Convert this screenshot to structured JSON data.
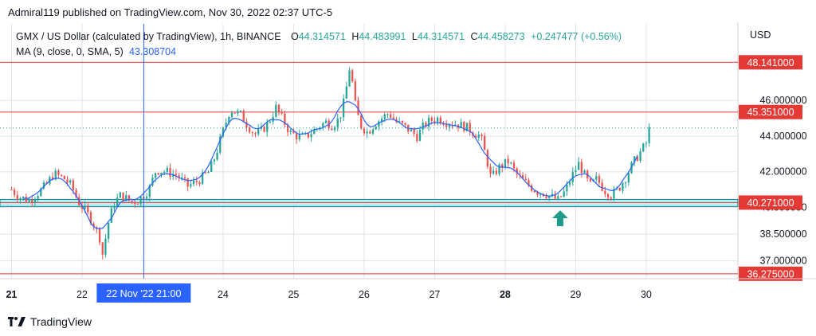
{
  "publisher_line": "Admiral119 published on TradingView.com, Nov 30, 2022 02:37 UTC-5",
  "footer_brand": "TradingView",
  "colors": {
    "up": "#26a69a",
    "down": "#ef5350",
    "ma": "#2962ff",
    "hline": "#e53935",
    "zone_fill": "#b2ebf2",
    "zone_border": "#00838f",
    "arrow": "#1e9e8a",
    "crosshair": "#2962ff",
    "grid": "#e0e3eb"
  },
  "chart_data": {
    "type": "candlestick",
    "symbol_line": {
      "title": "GMX / US Dollar (calculated by TradingView), 1h, BINANCE",
      "o_label": "O",
      "o": "44.314571",
      "h_label": "H",
      "h": "44.483991",
      "l_label": "L",
      "l": "44.314571",
      "c_label": "C",
      "c": "44.458273",
      "change": "+0.247477 (+0.56%)"
    },
    "ma_line": {
      "label": "MA (9, close, 0, SMA, 5)",
      "value": "43.308704"
    },
    "currency": "USD",
    "y_ticks": [
      {
        "value": 46.0,
        "label": "46.000000"
      },
      {
        "value": 44.0,
        "label": "44.000000"
      },
      {
        "value": 42.0,
        "label": "42.000000"
      },
      {
        "value": 40.0,
        "label": "40.000000"
      },
      {
        "value": 38.5,
        "label": "38.500000"
      },
      {
        "value": 37.0,
        "label": "37.000000"
      }
    ],
    "x_ticks": [
      {
        "day": 21,
        "label": "21",
        "bold": true
      },
      {
        "day": 22,
        "label": "22",
        "bold": false
      },
      {
        "day": 24,
        "label": "24",
        "bold": false
      },
      {
        "day": 25,
        "label": "25",
        "bold": false
      },
      {
        "day": 26,
        "label": "26",
        "bold": false
      },
      {
        "day": 27,
        "label": "27",
        "bold": false
      },
      {
        "day": 28,
        "label": "28",
        "bold": true
      },
      {
        "day": 29,
        "label": "29",
        "bold": false
      },
      {
        "day": 30,
        "label": "30",
        "bold": false
      }
    ],
    "x_range_days": [
      20.95,
      31.3
    ],
    "y_range": [
      36.0,
      48.6
    ],
    "levels": [
      {
        "value": 48.141,
        "label": "48.141000"
      },
      {
        "value": 45.351,
        "label": "45.351000"
      },
      {
        "value": 40.271,
        "label": "40.271000"
      },
      {
        "value": 36.275,
        "label": "36.275000"
      }
    ],
    "current_price": 44.458,
    "support_zone": [
      40.05,
      40.45
    ],
    "crosshair": {
      "day": 22.875,
      "label": "22 Nov '22   21:00"
    },
    "arrow_up_at": {
      "day": 28.78,
      "value": 39.75
    },
    "price_path": [
      [
        21.0,
        41.0
      ],
      [
        21.1,
        40.6
      ],
      [
        21.25,
        40.4
      ],
      [
        21.4,
        40.9
      ],
      [
        21.5,
        41.3
      ],
      [
        21.6,
        41.9
      ],
      [
        21.75,
        41.6
      ],
      [
        21.85,
        41.2
      ],
      [
        21.95,
        40.3
      ],
      [
        22.05,
        39.8
      ],
      [
        22.15,
        39.2
      ],
      [
        22.25,
        38.3
      ],
      [
        22.3,
        37.2
      ],
      [
        22.35,
        38.8
      ],
      [
        22.45,
        40.2
      ],
      [
        22.55,
        40.7
      ],
      [
        22.7,
        40.3
      ],
      [
        22.8,
        40.4
      ],
      [
        22.95,
        41.0
      ],
      [
        23.05,
        42.1
      ],
      [
        23.2,
        42.0
      ],
      [
        23.35,
        41.8
      ],
      [
        23.5,
        41.2
      ],
      [
        23.65,
        41.5
      ],
      [
        23.8,
        42.0
      ],
      [
        23.9,
        43.0
      ],
      [
        24.0,
        44.3
      ],
      [
        24.1,
        45.5
      ],
      [
        24.25,
        45.2
      ],
      [
        24.35,
        44.6
      ],
      [
        24.45,
        44.1
      ],
      [
        24.55,
        44.3
      ],
      [
        24.65,
        44.8
      ],
      [
        24.75,
        45.6
      ],
      [
        24.85,
        44.9
      ],
      [
        24.95,
        44.2
      ],
      [
        25.05,
        44.0
      ],
      [
        25.15,
        43.9
      ],
      [
        25.25,
        44.2
      ],
      [
        25.35,
        44.5
      ],
      [
        25.45,
        44.8
      ],
      [
        25.55,
        44.6
      ],
      [
        25.65,
        45.0
      ],
      [
        25.72,
        46.0
      ],
      [
        25.8,
        48.0
      ],
      [
        25.88,
        45.6
      ],
      [
        25.95,
        44.6
      ],
      [
        26.05,
        44.2
      ],
      [
        26.15,
        44.7
      ],
      [
        26.25,
        45.0
      ],
      [
        26.35,
        45.3
      ],
      [
        26.45,
        44.8
      ],
      [
        26.55,
        44.6
      ],
      [
        26.65,
        44.3
      ],
      [
        26.75,
        44.0
      ],
      [
        26.85,
        44.6
      ],
      [
        26.95,
        44.9
      ],
      [
        27.05,
        45.0
      ],
      [
        27.15,
        44.8
      ],
      [
        27.3,
        44.7
      ],
      [
        27.45,
        44.5
      ],
      [
        27.55,
        44.2
      ],
      [
        27.65,
        44.0
      ],
      [
        27.75,
        42.5
      ],
      [
        27.8,
        41.6
      ],
      [
        27.9,
        42.2
      ],
      [
        28.05,
        42.6
      ],
      [
        28.15,
        41.9
      ],
      [
        28.25,
        41.5
      ],
      [
        28.35,
        41.2
      ],
      [
        28.45,
        40.9
      ],
      [
        28.55,
        40.8
      ],
      [
        28.65,
        40.6
      ],
      [
        28.75,
        40.4
      ],
      [
        28.85,
        40.9
      ],
      [
        28.95,
        41.8
      ],
      [
        29.05,
        42.5
      ],
      [
        29.1,
        42.0
      ],
      [
        29.2,
        41.2
      ],
      [
        29.3,
        41.6
      ],
      [
        29.4,
        41.0
      ],
      [
        29.5,
        40.7
      ],
      [
        29.6,
        41.0
      ],
      [
        29.7,
        41.6
      ],
      [
        29.8,
        42.4
      ],
      [
        29.9,
        43.0
      ],
      [
        30.0,
        43.6
      ],
      [
        30.05,
        44.5
      ],
      [
        30.08,
        44.458
      ]
    ]
  }
}
